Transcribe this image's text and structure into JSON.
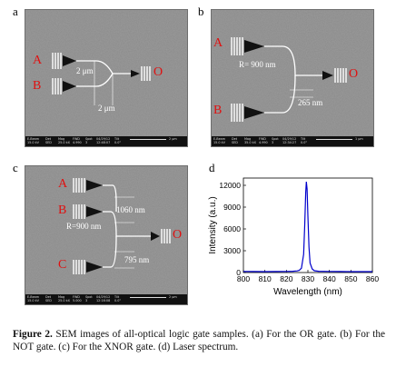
{
  "panels": [
    {
      "letter": "a",
      "labels": {
        "in1": "A",
        "in2": "B",
        "out": "O",
        "dim1": "2 μm",
        "dim2": "2 μm"
      },
      "bar": {
        "col1": "E-Beam\n15.0 kV",
        "col2": "Det\nSED",
        "col3": "Mag\n25.0 kX",
        "col4": "FWD\n4.990",
        "col5": "Spot\n3",
        "col6": "04/29/12\n12:48:07",
        "col7": "Tilt\n0.0°",
        "scale": "2 μm"
      }
    },
    {
      "letter": "b",
      "labels": {
        "in1": "A",
        "in2": "B",
        "out": "O",
        "dim1": "R= 900 nm",
        "dim2": "265 nm"
      },
      "bar": {
        "col1": "E-Beam\n15.0 kV",
        "col2": "Det\nSED",
        "col3": "Mag\n35.0 kX",
        "col4": "FWD\n4.990",
        "col5": "Spot\n3",
        "col6": "04/29/12\n12:34:27",
        "col7": "Tilt\n0.0°",
        "scale": "1 μm"
      }
    },
    {
      "letter": "c",
      "labels": {
        "in1": "A",
        "in2": "B",
        "in3": "C",
        "out": "O",
        "dim1": "1060 nm",
        "dim2": "R=900 nm",
        "dim3": "795 nm"
      },
      "bar": {
        "col1": "E-Beam\n15.0 kV",
        "col2": "Det\nSED",
        "col3": "Mag\n25.0 kX",
        "col4": "FWD\n5.000",
        "col5": "Spot\n3",
        "col6": "04/29/12\n12:16:08",
        "col7": "Tilt\n0.0°",
        "scale": "2 μm"
      }
    }
  ],
  "panel_d_letter": "d",
  "chart_data": {
    "type": "line",
    "xlabel": "Wavelength (nm)",
    "ylabel": "Intensity (a.u.)",
    "xlim": [
      800,
      860
    ],
    "ylim": [
      0,
      13000
    ],
    "xticks": [
      "800",
      "810",
      "820",
      "830",
      "840",
      "850",
      "860"
    ],
    "yticks": [
      "0",
      "3000",
      "6000",
      "9000",
      "12000"
    ],
    "series": [
      {
        "color": "#0000cc",
        "x": [
          800,
          805,
          810,
          815,
          820,
          823,
          825,
          826,
          827,
          828,
          828.5,
          829,
          829.3,
          829.6,
          830,
          830.5,
          831,
          832,
          833,
          835,
          840,
          845,
          850,
          855,
          860
        ],
        "values": [
          150,
          140,
          130,
          140,
          150,
          170,
          220,
          300,
          600,
          2500,
          6500,
          11000,
          12500,
          11500,
          7800,
          3500,
          1300,
          500,
          250,
          180,
          150,
          140,
          130,
          120,
          120
        ]
      }
    ]
  },
  "caption": {
    "label": "Figure 2.",
    "text": " SEM images of all-optical logic gate samples. (a) For the OR gate. (b) For the NOT gate. (c) For the XNOR gate. (d) Laser spectrum."
  },
  "colors": {
    "label_red": "#e01010",
    "spectrum": "#0000cc"
  }
}
